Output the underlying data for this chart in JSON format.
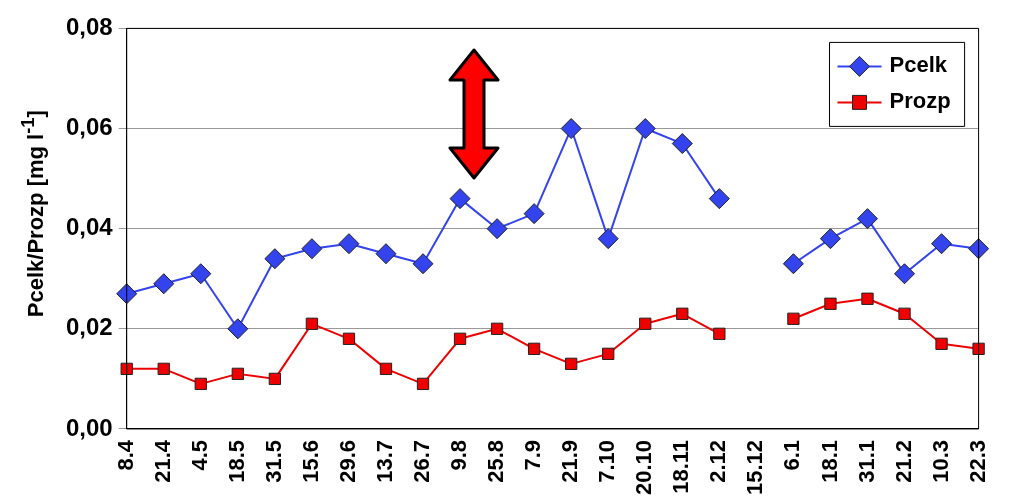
{
  "chart_data": {
    "type": "line",
    "ylabel": "Pcelk/Prozp [mg l$^{-1}$]",
    "categories": [
      "8.4",
      "21.4",
      "4.5",
      "18.5",
      "31.5",
      "15.6",
      "29.6",
      "13.7",
      "26.7",
      "9.8",
      "25.8",
      "7.9",
      "21.9",
      "7.10",
      "20.10",
      "18.11",
      "2.12",
      "15.12",
      "6.1",
      "18.1",
      "31.1",
      "21.2",
      "10.3",
      "22.3"
    ],
    "series": [
      {
        "name": "Pcelk",
        "color": "#3344ee",
        "marker": "diamond",
        "values": [
          0.027,
          0.029,
          0.031,
          0.02,
          0.034,
          0.036,
          0.037,
          0.035,
          0.033,
          0.046,
          0.04,
          0.043,
          0.06,
          0.038,
          0.06,
          0.057,
          0.046,
          null,
          0.033,
          0.038,
          0.042,
          0.031,
          0.037,
          0.036
        ]
      },
      {
        "name": "Prozp",
        "color": "#ee0000",
        "marker": "square",
        "values": [
          0.012,
          0.012,
          0.009,
          0.011,
          0.01,
          0.021,
          0.018,
          0.012,
          0.009,
          0.018,
          0.02,
          0.016,
          0.013,
          0.015,
          0.021,
          0.023,
          0.019,
          null,
          0.022,
          0.025,
          0.026,
          0.023,
          0.017,
          0.016
        ]
      }
    ],
    "ylim": [
      0,
      0.08
    ],
    "yticks": [
      {
        "value": 0,
        "label": "0,00"
      },
      {
        "value": 0.02,
        "label": "0,02"
      },
      {
        "value": 0.04,
        "label": "0,04"
      },
      {
        "value": 0.06,
        "label": "0,06"
      },
      {
        "value": 0.08,
        "label": "0,08"
      }
    ],
    "grid": "y",
    "legend": "top right",
    "line_style": "solid"
  }
}
